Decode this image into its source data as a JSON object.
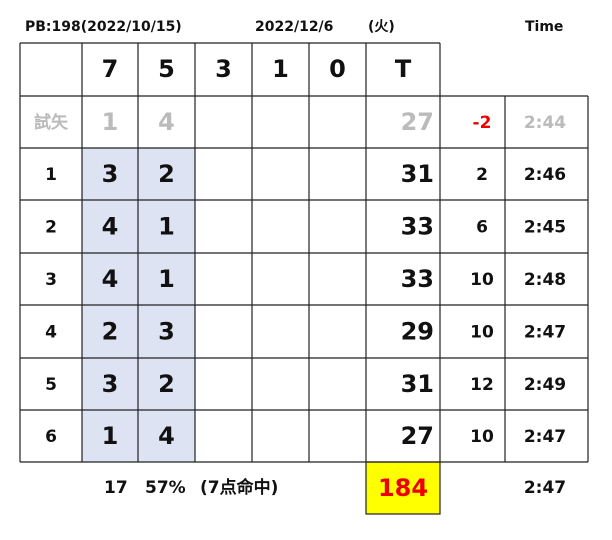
{
  "header": {
    "pb": "PB:198(2022/10/15)",
    "date": "2022/12/6",
    "weekday": "(火)",
    "time_label": "Time"
  },
  "table": {
    "columns": [
      "7",
      "5",
      "3",
      "1",
      "0",
      "T"
    ],
    "rows": [
      {
        "label": "試矢",
        "c7": 1,
        "c5": 4,
        "total": 27,
        "diff": -2,
        "time": "2:44"
      },
      {
        "label": 1,
        "c7": 3,
        "c5": 2,
        "total": 31,
        "diff": 2,
        "time": "2:46"
      },
      {
        "label": 2,
        "c7": 4,
        "c5": 1,
        "total": 33,
        "diff": 6,
        "time": "2:45"
      },
      {
        "label": 3,
        "c7": 4,
        "c5": 1,
        "total": 33,
        "diff": 10,
        "time": "2:48"
      },
      {
        "label": 4,
        "c7": 2,
        "c5": 3,
        "total": 29,
        "diff": 10,
        "time": "2:47"
      },
      {
        "label": 5,
        "c7": 3,
        "c5": 2,
        "total": 31,
        "diff": 12,
        "time": "2:49"
      },
      {
        "label": 6,
        "c7": 1,
        "c5": 4,
        "total": 27,
        "diff": 10,
        "time": "2:47"
      }
    ]
  },
  "footer": {
    "hits": 17,
    "rate": "57%",
    "note": "(7点命中)",
    "grand_total": 184,
    "avg_time": "2:47"
  }
}
